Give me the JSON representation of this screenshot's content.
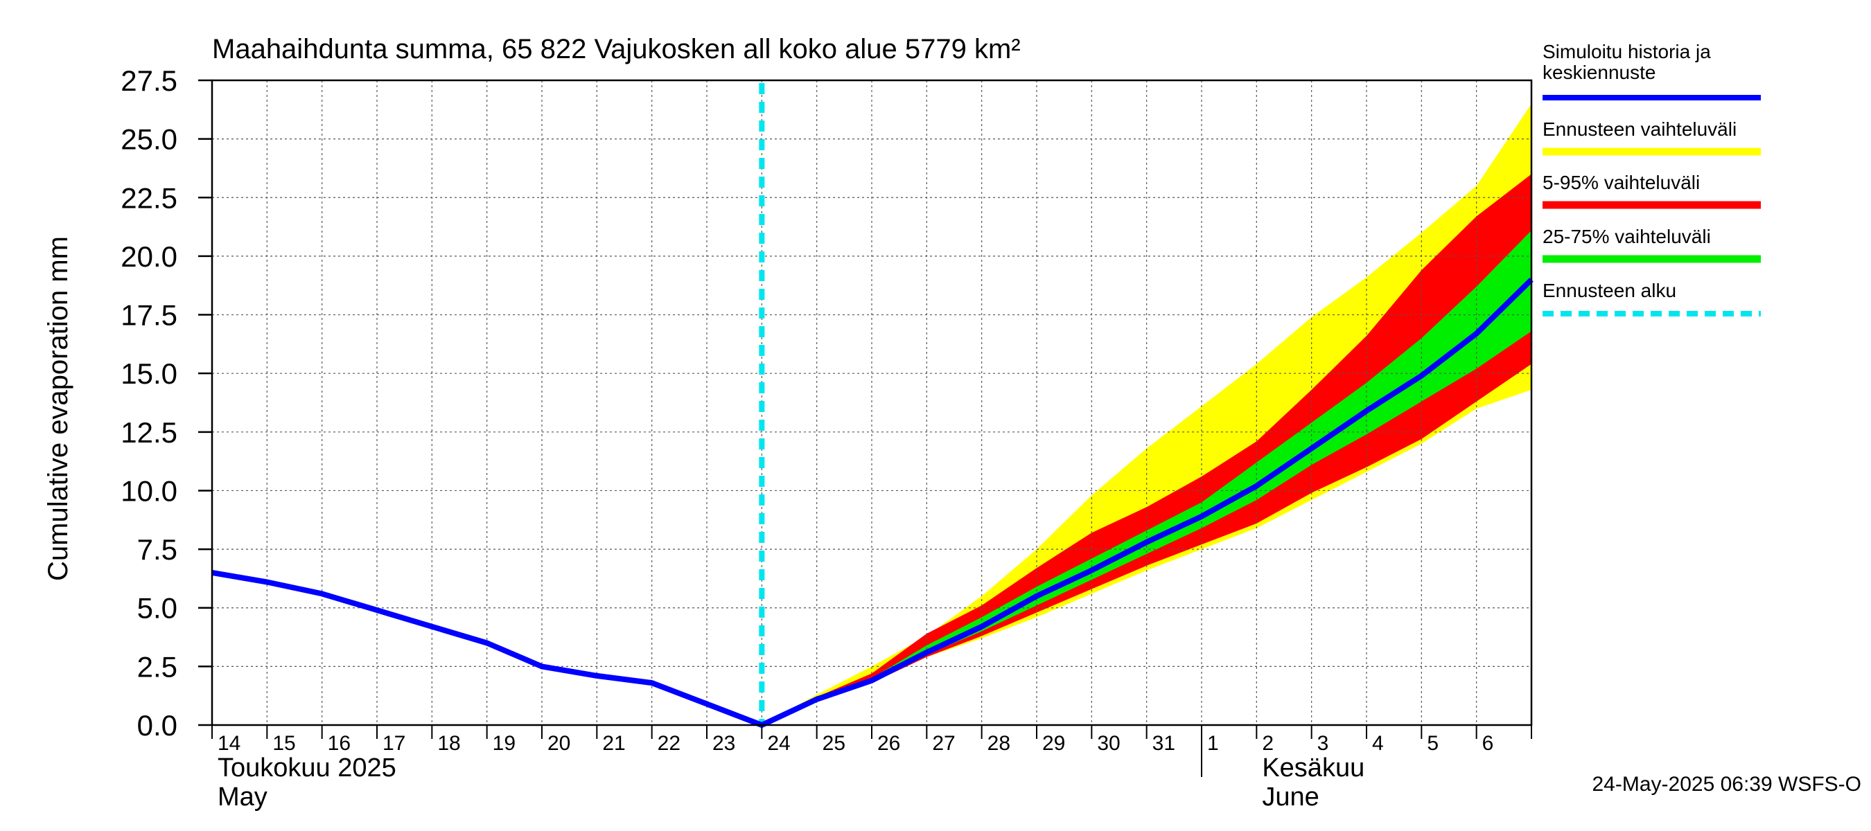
{
  "chart_data": {
    "type": "area",
    "title": "Maahaihdunta summa, 65 822 Vajukosken all koko alue 5779 km²",
    "ylabel": "Cumulative evaporation   mm",
    "ylim": [
      0,
      27.5
    ],
    "yticks": [
      "0.0",
      "2.5",
      "5.0",
      "7.5",
      "10.0",
      "12.5",
      "15.0",
      "17.5",
      "20.0",
      "22.5",
      "25.0",
      "27.5"
    ],
    "x_range": [
      "2025-05-14",
      "2025-06-07"
    ],
    "x_tick_labels": [
      "14",
      "15",
      "16",
      "17",
      "18",
      "19",
      "20",
      "21",
      "22",
      "23",
      "24",
      "25",
      "26",
      "27",
      "28",
      "29",
      "30",
      "31",
      "1",
      "2",
      "3",
      "4",
      "5",
      "6"
    ],
    "month_labels": [
      {
        "fi": "Toukokuu  2025",
        "en": "May"
      },
      {
        "fi": "Kesäkuu",
        "en": "June"
      }
    ],
    "forecast_start": "2025-05-24",
    "grid": true,
    "legend_position": "right",
    "legend": [
      {
        "label": "Simuloitu historia ja keskiennuste",
        "color": "#0000ff",
        "style": "line"
      },
      {
        "label": "Ennusteen vaihteluväli",
        "color": "#ffff00",
        "style": "band"
      },
      {
        "label": "5-95% vaihteluväli",
        "color": "#ff0000",
        "style": "band"
      },
      {
        "label": "25-75% vaihteluväli",
        "color": "#00ee00",
        "style": "band"
      },
      {
        "label": "Ennusteen alku",
        "color": "#00e5ee",
        "style": "dashed"
      }
    ],
    "x": [
      "2025-05-14",
      "2025-05-15",
      "2025-05-16",
      "2025-05-17",
      "2025-05-18",
      "2025-05-19",
      "2025-05-20",
      "2025-05-21",
      "2025-05-22",
      "2025-05-23",
      "2025-05-24",
      "2025-05-25",
      "2025-05-26",
      "2025-05-27",
      "2025-05-28",
      "2025-05-29",
      "2025-05-30",
      "2025-05-31",
      "2025-06-01",
      "2025-06-02",
      "2025-06-03",
      "2025-06-04",
      "2025-06-05",
      "2025-06-06",
      "2025-06-07"
    ],
    "series": [
      {
        "name": "Simuloitu historia ja keskiennuste",
        "color": "#0000ff",
        "values": [
          6.5,
          6.1,
          5.6,
          4.9,
          4.2,
          3.5,
          2.5,
          2.1,
          1.8,
          0.9,
          0.0,
          1.1,
          1.9,
          3.1,
          4.2,
          5.5,
          6.6,
          7.8,
          8.9,
          10.2,
          11.8,
          13.4,
          14.9,
          16.7,
          19.0
        ]
      }
    ],
    "bands": [
      {
        "name": "Ennusteen vaihteluväli",
        "color": "#ffff00",
        "x": [
          "2025-05-24",
          "2025-05-25",
          "2025-05-26",
          "2025-05-27",
          "2025-05-28",
          "2025-05-29",
          "2025-05-30",
          "2025-05-31",
          "2025-06-01",
          "2025-06-02",
          "2025-06-03",
          "2025-06-04",
          "2025-06-05",
          "2025-06-06",
          "2025-06-07"
        ],
        "upper": [
          0.0,
          1.3,
          2.5,
          3.8,
          5.5,
          7.5,
          9.8,
          11.8,
          13.6,
          15.4,
          17.4,
          19.1,
          21.0,
          23.0,
          26.5
        ],
        "lower": [
          0.0,
          1.1,
          1.8,
          2.9,
          3.7,
          4.6,
          5.6,
          6.6,
          7.5,
          8.4,
          9.6,
          10.8,
          12.0,
          13.5,
          14.3
        ]
      },
      {
        "name": "5-95% vaihteluväli",
        "color": "#ff0000",
        "x": [
          "2025-05-24",
          "2025-05-25",
          "2025-05-26",
          "2025-05-27",
          "2025-05-28",
          "2025-05-29",
          "2025-05-30",
          "2025-05-31",
          "2025-06-01",
          "2025-06-02",
          "2025-06-03",
          "2025-06-04",
          "2025-06-05",
          "2025-06-06",
          "2025-06-07"
        ],
        "upper": [
          0.0,
          1.2,
          2.2,
          3.9,
          5.1,
          6.7,
          8.2,
          9.3,
          10.6,
          12.1,
          14.3,
          16.6,
          19.4,
          21.7,
          23.5
        ],
        "lower": [
          0.0,
          1.1,
          1.8,
          2.9,
          3.8,
          4.8,
          5.8,
          6.8,
          7.7,
          8.6,
          9.9,
          11.0,
          12.2,
          13.8,
          15.4
        ]
      },
      {
        "name": "25-75% vaihteluväli",
        "color": "#00ee00",
        "x": [
          "2025-05-24",
          "2025-05-25",
          "2025-05-26",
          "2025-05-27",
          "2025-05-28",
          "2025-05-29",
          "2025-05-30",
          "2025-05-31",
          "2025-06-01",
          "2025-06-02",
          "2025-06-03",
          "2025-06-04",
          "2025-06-05",
          "2025-06-06",
          "2025-06-07"
        ],
        "upper": [
          0.0,
          1.15,
          2.0,
          3.4,
          4.6,
          5.9,
          7.1,
          8.3,
          9.5,
          11.2,
          12.9,
          14.6,
          16.5,
          18.7,
          21.1
        ],
        "lower": [
          0.0,
          1.1,
          1.8,
          3.0,
          4.0,
          5.1,
          6.2,
          7.3,
          8.4,
          9.6,
          11.1,
          12.4,
          13.8,
          15.2,
          16.8
        ]
      }
    ],
    "footer": "24-May-2025 06:39 WSFS-O"
  }
}
